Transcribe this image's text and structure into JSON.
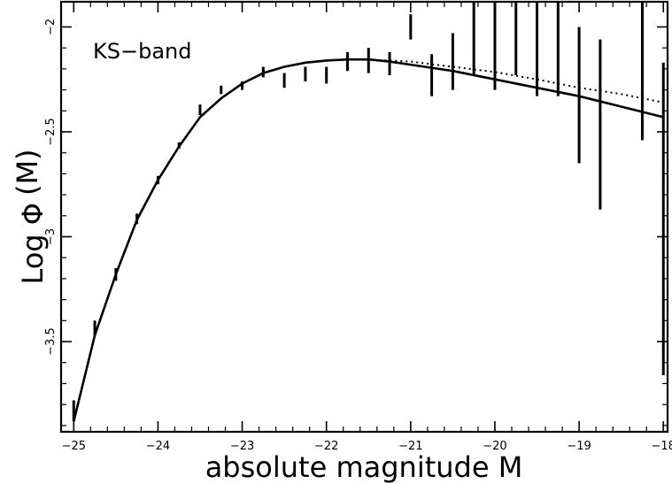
{
  "chart_data": {
    "type": "scatter",
    "annotation": "KS−band",
    "xlabel": "absolute magnitude M",
    "ylabel_prefix": "Log Φ",
    "ylabel_suffix": "(M)",
    "xlim": [
      -25.15,
      -17.95
    ],
    "ylim": [
      -3.93,
      -1.88
    ],
    "x_ticks": [
      {
        "value": -25,
        "label": "−25"
      },
      {
        "value": -24,
        "label": "−24"
      },
      {
        "value": -23,
        "label": "−23"
      },
      {
        "value": -22,
        "label": "−22"
      },
      {
        "value": -21,
        "label": "−21"
      },
      {
        "value": -20,
        "label": "−20"
      },
      {
        "value": -19,
        "label": "−19"
      },
      {
        "value": -18,
        "label": "−18"
      }
    ],
    "y_ticks": [
      {
        "value": -2,
        "label": "−2"
      },
      {
        "value": -2.5,
        "label": "−2.5"
      },
      {
        "value": -3,
        "label": "−3"
      },
      {
        "value": -3.5,
        "label": "−3.5"
      }
    ],
    "series": [
      {
        "style": "errorbar",
        "points": [
          {
            "x": -25.0,
            "ylow": -3.88,
            "yhigh": -3.78
          },
          {
            "x": -24.75,
            "ylow": -3.47,
            "yhigh": -3.4
          },
          {
            "x": -24.5,
            "ylow": -3.21,
            "yhigh": -3.15
          },
          {
            "x": -24.25,
            "ylow": -2.94,
            "yhigh": -2.89
          },
          {
            "x": -24.0,
            "ylow": -2.75,
            "yhigh": -2.71
          },
          {
            "x": -23.75,
            "ylow": -2.58,
            "yhigh": -2.55
          },
          {
            "x": -23.5,
            "ylow": -2.42,
            "yhigh": -2.37
          },
          {
            "x": -23.25,
            "ylow": -2.32,
            "yhigh": -2.28
          },
          {
            "x": -23.0,
            "ylow": -2.3,
            "yhigh": -2.26
          },
          {
            "x": -22.75,
            "ylow": -2.24,
            "yhigh": -2.19
          },
          {
            "x": -22.5,
            "ylow": -2.29,
            "yhigh": -2.22
          },
          {
            "x": -22.25,
            "ylow": -2.26,
            "yhigh": -2.19
          },
          {
            "x": -22.0,
            "ylow": -2.27,
            "yhigh": -2.19
          },
          {
            "x": -21.75,
            "ylow": -2.21,
            "yhigh": -2.12
          },
          {
            "x": -21.5,
            "ylow": -2.22,
            "yhigh": -2.1
          },
          {
            "x": -21.25,
            "ylow": -2.23,
            "yhigh": -2.12
          },
          {
            "x": -21.0,
            "ylow": -2.06,
            "yhigh": -1.94
          },
          {
            "x": -20.75,
            "ylow": -2.33,
            "yhigh": -2.13
          },
          {
            "x": -20.5,
            "ylow": -2.3,
            "yhigh": -2.03
          },
          {
            "x": -20.25,
            "ylow": -2.23,
            "yhigh": -1.88
          },
          {
            "x": -20.0,
            "ylow": -2.3,
            "yhigh": -1.88
          },
          {
            "x": -19.75,
            "ylow": -2.23,
            "yhigh": -1.88
          },
          {
            "x": -19.5,
            "ylow": -2.33,
            "yhigh": -1.88
          },
          {
            "x": -19.25,
            "ylow": -2.33,
            "yhigh": -1.88
          },
          {
            "x": -19.0,
            "ylow": -2.65,
            "yhigh": -2.0
          },
          {
            "x": -18.75,
            "ylow": -2.87,
            "yhigh": -2.06
          },
          {
            "x": -18.25,
            "ylow": -2.54,
            "yhigh": -1.88
          },
          {
            "x": -18.0,
            "ylow": -3.66,
            "yhigh": -2.17
          }
        ]
      },
      {
        "style": "solid",
        "points": [
          [
            -25.0,
            -3.88
          ],
          [
            -24.75,
            -3.47
          ],
          [
            -24.5,
            -3.18
          ],
          [
            -24.25,
            -2.92
          ],
          [
            -24.0,
            -2.73
          ],
          [
            -23.75,
            -2.57
          ],
          [
            -23.5,
            -2.43
          ],
          [
            -23.25,
            -2.34
          ],
          [
            -23.0,
            -2.27
          ],
          [
            -22.75,
            -2.22
          ],
          [
            -22.5,
            -2.19
          ],
          [
            -22.25,
            -2.17
          ],
          [
            -22.0,
            -2.16
          ],
          [
            -21.75,
            -2.155
          ],
          [
            -21.5,
            -2.155
          ],
          [
            -21.25,
            -2.165
          ],
          [
            -21.0,
            -2.18
          ],
          [
            -20.5,
            -2.21
          ],
          [
            -20.0,
            -2.25
          ],
          [
            -19.5,
            -2.29
          ],
          [
            -19.0,
            -2.33
          ],
          [
            -18.5,
            -2.38
          ],
          [
            -18.0,
            -2.43
          ]
        ]
      },
      {
        "style": "dotted",
        "points": [
          [
            -21.5,
            -2.155
          ],
          [
            -21.0,
            -2.165
          ],
          [
            -20.5,
            -2.19
          ],
          [
            -20.0,
            -2.215
          ],
          [
            -19.5,
            -2.25
          ],
          [
            -19.0,
            -2.29
          ],
          [
            -18.5,
            -2.32
          ],
          [
            -18.0,
            -2.36
          ]
        ]
      }
    ],
    "grid": false,
    "legend": "none"
  }
}
